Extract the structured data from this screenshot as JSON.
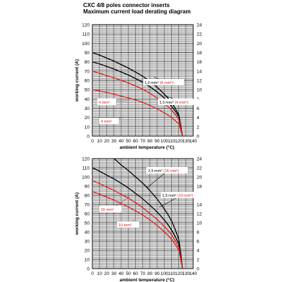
{
  "header": {
    "title": "CXC 4/8 poles connector inserts",
    "subtitle": "Maximum current load derating diagram"
  },
  "colors": {
    "black": "#000000",
    "red": "#d8231f",
    "grid": "#222222"
  },
  "chart_data": [
    {
      "type": "line",
      "xlabel": "ambient temperature (°C)",
      "ylabel": "working current (A)",
      "xlim": [
        0,
        140
      ],
      "ylim_left": [
        0,
        120
      ],
      "ylim_right": [
        0,
        24
      ],
      "x_ticks": [
        "0",
        "10",
        "20",
        "30",
        "40",
        "50",
        "60",
        "70",
        "80",
        "90",
        "100",
        "110",
        "120",
        "130",
        "140"
      ],
      "y_ticks_left": [
        "0",
        "10",
        "20",
        "30",
        "40",
        "50",
        "60",
        "70",
        "80",
        "90",
        "100",
        "110",
        "120"
      ],
      "y_ticks_right": [
        "0",
        "2",
        "4",
        "6",
        "8",
        "10",
        "12",
        "14",
        "16",
        "18",
        "20",
        "22",
        "24"
      ],
      "grid": true,
      "series": [
        {
          "name": "1,0 mm² (6 mm²)",
          "label": "1,0 mm²",
          "label_paren": "(6 mm²)",
          "color": "black",
          "x": [
            0,
            20,
            40,
            60,
            80,
            100,
            110,
            120,
            125
          ],
          "y": [
            90,
            84,
            77,
            69,
            59,
            45,
            36,
            23,
            0
          ]
        },
        {
          "name": "1,0 mm² (4 mm²)",
          "label": "1,0 mm²",
          "label_paren": "(4 mm²)",
          "color": "black",
          "x": [
            0,
            20,
            40,
            60,
            80,
            100,
            110,
            120,
            125
          ],
          "y": [
            80,
            75,
            69,
            62,
            53,
            41,
            32,
            21,
            0
          ]
        },
        {
          "name": "4 mm²",
          "label": "4 mm²",
          "color": "red",
          "x": [
            0,
            20,
            40,
            60,
            80,
            100,
            110,
            120,
            125
          ],
          "y": [
            70,
            65,
            60,
            54,
            46,
            35,
            28,
            18,
            0
          ]
        },
        {
          "name": "4 mm²",
          "label": "4 mm²",
          "color": "red",
          "x": [
            0,
            20,
            40,
            60,
            80,
            100,
            110,
            120,
            125
          ],
          "y": [
            50,
            47,
            43,
            39,
            33,
            25,
            20,
            13,
            0
          ]
        }
      ]
    },
    {
      "type": "line",
      "xlabel": "ambient temperature (°C)",
      "ylabel": "working current (A)",
      "xlim": [
        0,
        140
      ],
      "ylim_left": [
        0,
        120
      ],
      "ylim_right": [
        0,
        24
      ],
      "x_ticks": [
        "0",
        "10",
        "20",
        "30",
        "40",
        "50",
        "60",
        "70",
        "80",
        "90",
        "100",
        "110",
        "120",
        "130",
        "140"
      ],
      "y_ticks_left": [
        "0",
        "10",
        "20",
        "30",
        "40",
        "50",
        "60",
        "70",
        "80",
        "90",
        "100",
        "110",
        "120"
      ],
      "y_ticks_right": [
        "0",
        "2",
        "4",
        "6",
        "8",
        "10",
        "12",
        "14",
        "16",
        "18",
        "20",
        "22",
        "24"
      ],
      "grid": true,
      "series": [
        {
          "name": "2,5 mm² (16 mm²)",
          "label": "2,5 mm²",
          "label_paren": "(16 mm²)",
          "color": "black",
          "x": [
            30,
            40,
            60,
            80,
            100,
            110,
            120,
            125
          ],
          "y": [
            120,
            113,
            100,
            85,
            65,
            52,
            32,
            0
          ]
        },
        {
          "name": "1,5 mm² (10 mm²)",
          "label": "1,5 mm²",
          "label_paren": "(10 mm²)",
          "color": "black",
          "x": [
            0,
            20,
            40,
            60,
            80,
            100,
            110,
            120,
            125
          ],
          "y": [
            110,
            102,
            93,
            82,
            69,
            53,
            42,
            27,
            0
          ]
        },
        {
          "name": "16 mm²",
          "label": "16 mm²",
          "color": "red",
          "x": [
            0,
            20,
            40,
            60,
            80,
            100,
            110,
            120,
            125
          ],
          "y": [
            96,
            89,
            81,
            72,
            60,
            46,
            37,
            23,
            0
          ]
        },
        {
          "name": "10 mm²",
          "label": "10 mm²",
          "color": "red",
          "x": [
            0,
            20,
            40,
            60,
            80,
            100,
            110,
            120,
            125
          ],
          "y": [
            84,
            78,
            71,
            63,
            53,
            40,
            32,
            20,
            0
          ]
        }
      ]
    }
  ]
}
